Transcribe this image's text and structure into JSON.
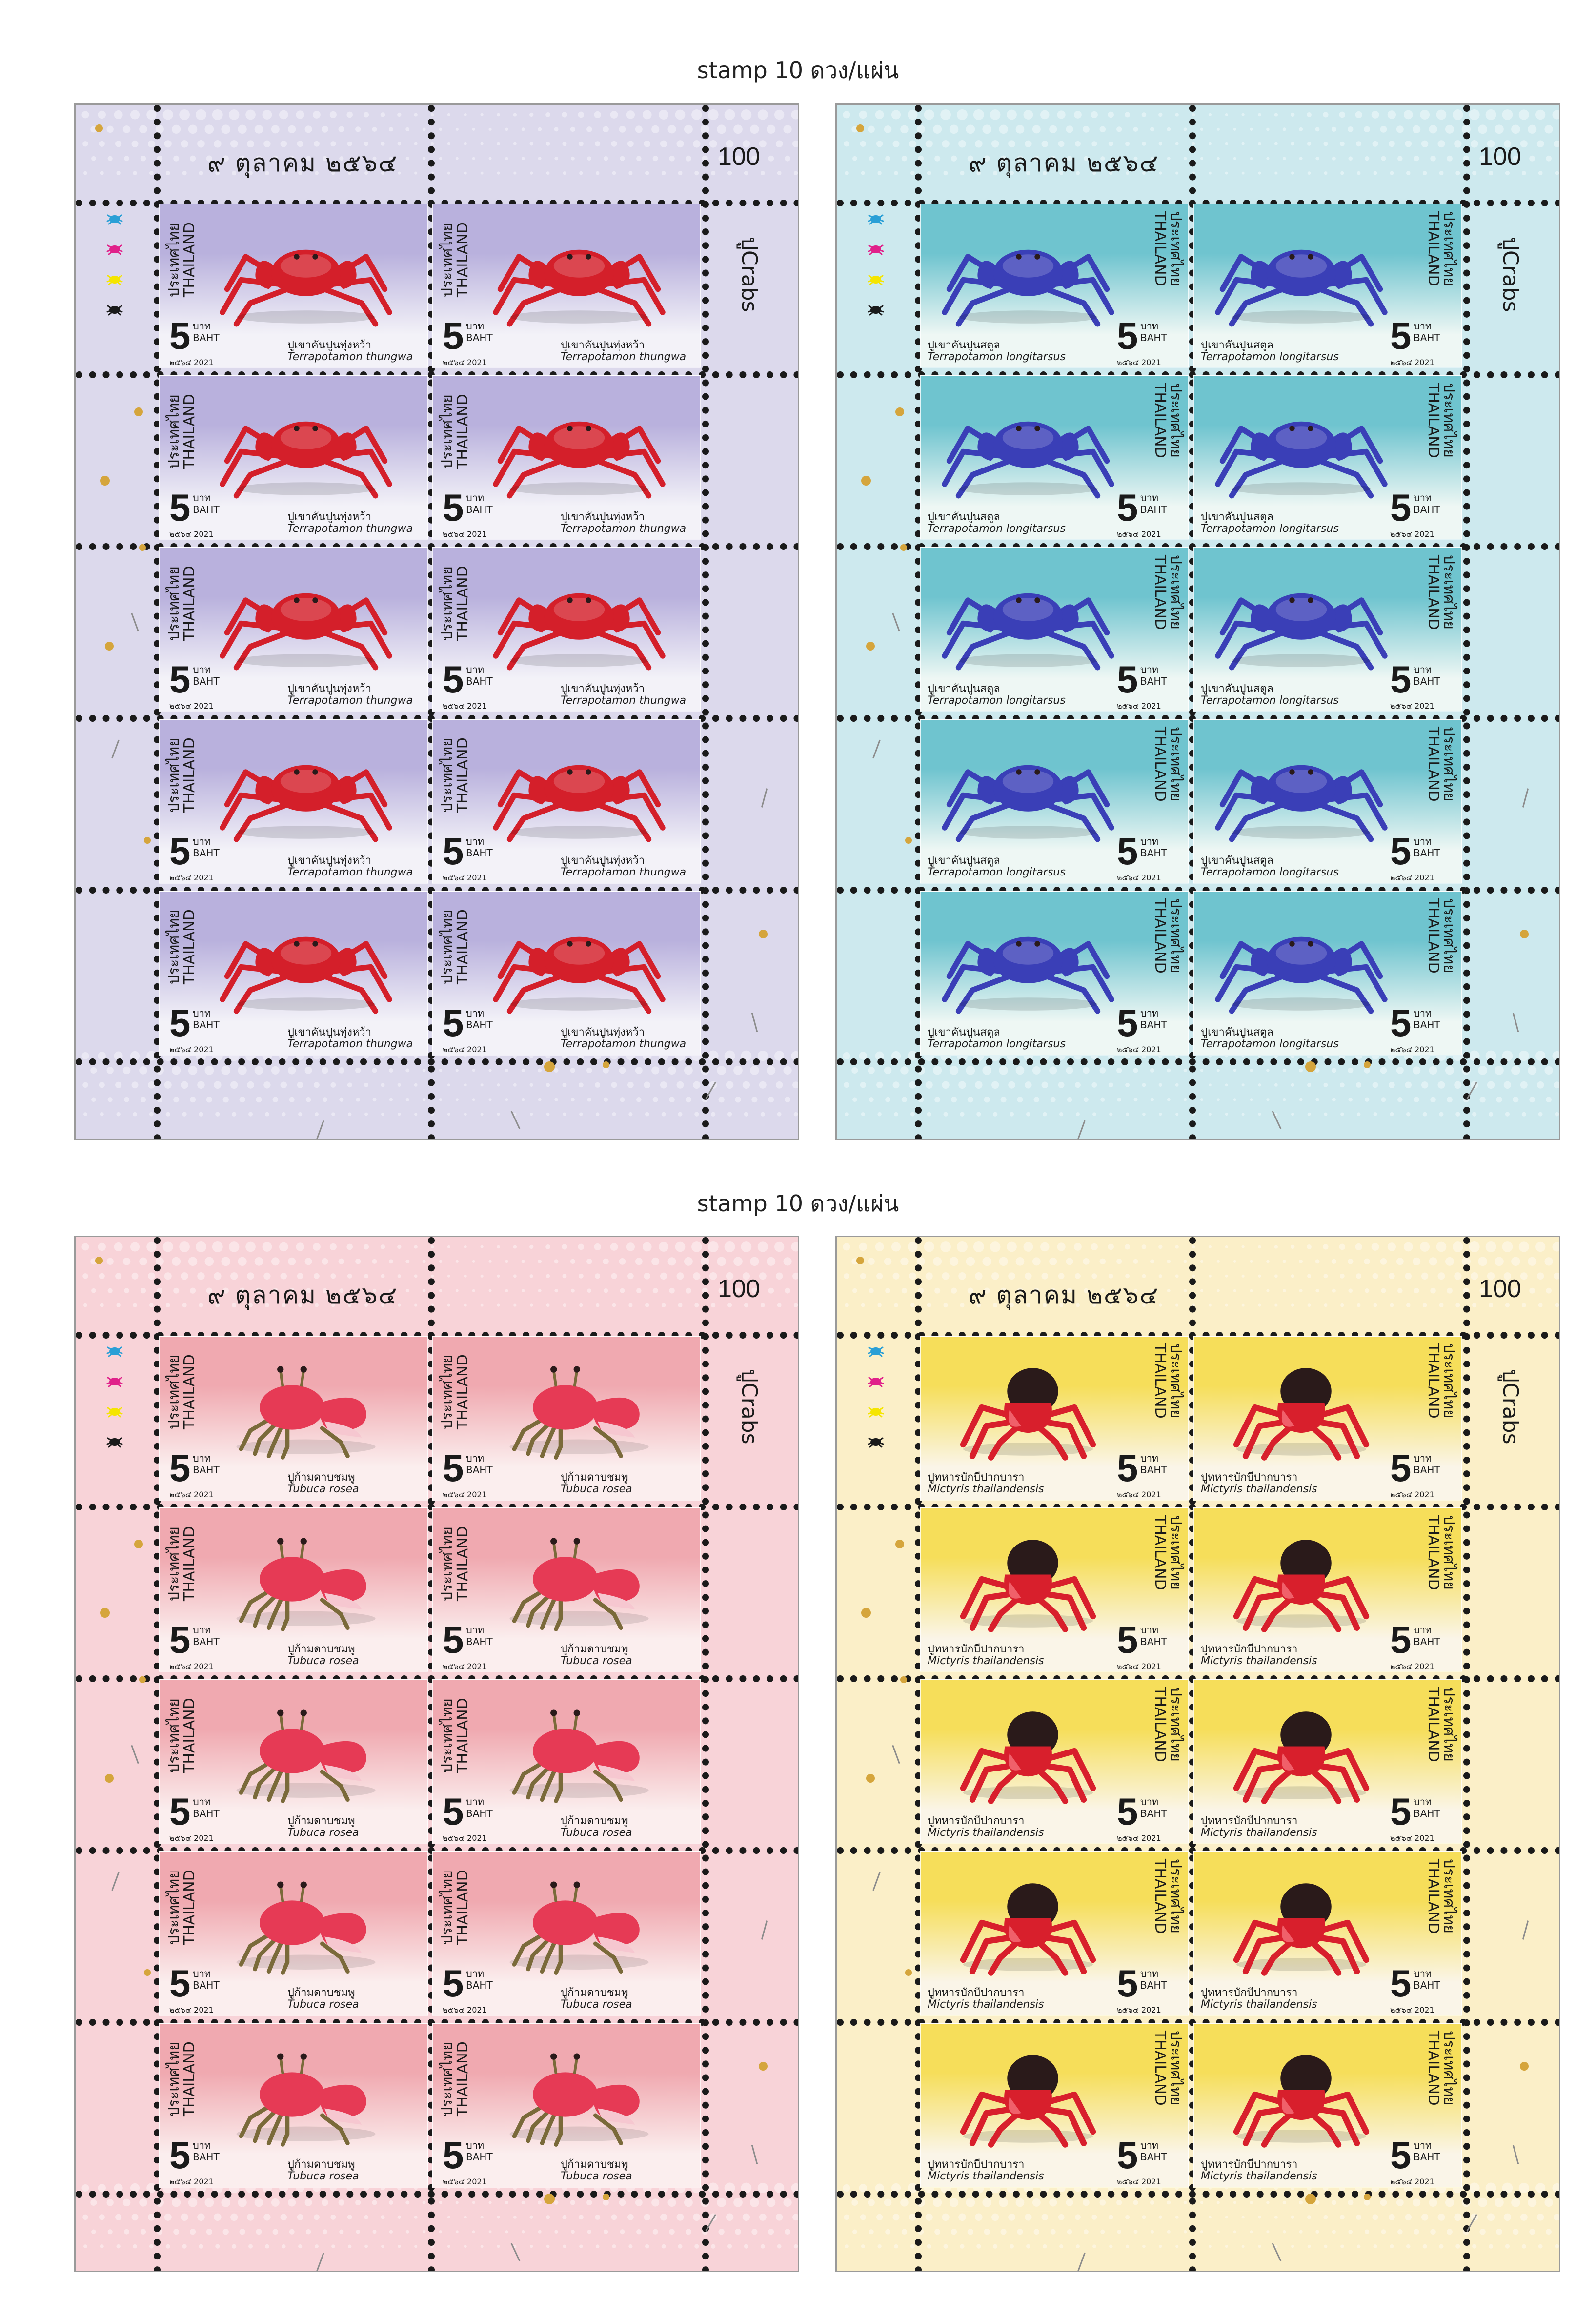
{
  "captions": [
    "stamp 10 ดวง/แผ่น",
    "stamp 10 ดวง/แผ่น"
  ],
  "colorbar_colors": [
    "#2a9fd6",
    "#e0218a",
    "#f5e500",
    "#1a1a1a"
  ],
  "colorbar_icons": [
    "crab-icon",
    "crab-icon",
    "crab-icon",
    "crab-icon"
  ],
  "sheets": [
    {
      "date": "๙ ตุลาคม ๒๕๖๔",
      "value": "100",
      "title": "ปูCrabs",
      "bg": "#dcd9ec",
      "stamp_bg_top": "#b9b1dd",
      "stamp_bg_bottom": "#f3f2f8",
      "crab_color": "#d41f2a",
      "crab_style": "spider",
      "layout": "left",
      "stamp": {
        "country_th": "ประเทศไทย",
        "country_en": "THAILAND",
        "denom": "5",
        "unit_th": "บาท",
        "unit_en": "BAHT",
        "year": "๒๕๖๔ 2021",
        "name_th": "ปูเขาคันปูนทุ่งหว้า",
        "name_sci": "Terrapotamon  thungwa"
      }
    },
    {
      "date": "๙ ตุลาคม ๒๕๖๔",
      "value": "100",
      "title": "ปูCrabs",
      "bg": "#cde9ee",
      "stamp_bg_top": "#6fc4cf",
      "stamp_bg_bottom": "#eef7f4",
      "crab_color": "#3a3fb7",
      "crab_style": "spider",
      "layout": "right",
      "stamp": {
        "country_th": "ประเทศไทย",
        "country_en": "THAILAND",
        "denom": "5",
        "unit_th": "บาท",
        "unit_en": "BAHT",
        "year": "๒๕๖๔ 2021",
        "name_th": "ปูเขาคันปูนสตูล",
        "name_sci": "Terrapotamon longitarsus"
      }
    },
    {
      "date": "๙ ตุลาคม ๒๕๖๔",
      "value": "100",
      "title": "ปูCrabs",
      "bg": "#f8d3d8",
      "stamp_bg_top": "#f0a9b0",
      "stamp_bg_bottom": "#fbeeee",
      "crab_color": "#e63a55",
      "crab_style": "fiddler",
      "layout": "left",
      "stamp": {
        "country_th": "ประเทศไทย",
        "country_en": "THAILAND",
        "denom": "5",
        "unit_th": "บาท",
        "unit_en": "BAHT",
        "year": "๒๕๖๔ 2021",
        "name_th": "ปูก้ามดาบชมพู",
        "name_sci": "Tubuca  rosea"
      }
    },
    {
      "date": "๙ ตุลาคม ๒๕๖๔",
      "value": "100",
      "title": "ปูCrabs",
      "bg": "#fbefc8",
      "stamp_bg_top": "#f6de5a",
      "stamp_bg_bottom": "#faf5e8",
      "crab_color": "#d81f2c",
      "crab_style": "soldier",
      "layout": "right",
      "stamp": {
        "country_th": "ประเทศไทย",
        "country_en": "THAILAND",
        "denom": "5",
        "unit_th": "บาท",
        "unit_en": "BAHT",
        "year": "๒๕๖๔ 2021",
        "name_th": "ปูทหารบักบีปากบารา",
        "name_sci": "Mictyris thailandensis"
      }
    }
  ]
}
